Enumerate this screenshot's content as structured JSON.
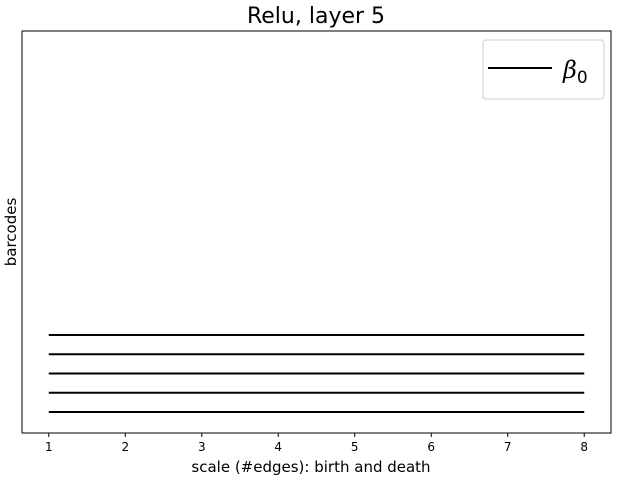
{
  "chart_data": {
    "type": "barcode",
    "title": "Relu, layer 5",
    "xlabel": "scale (#edges): birth and death",
    "ylabel": "barcodes",
    "xlim": [
      0.65,
      8.35
    ],
    "xticks": [
      1,
      2,
      3,
      4,
      5,
      6,
      7,
      8
    ],
    "legend": {
      "position": "top-right",
      "entries": [
        {
          "symbol": "β",
          "subscript": "0"
        }
      ]
    },
    "series": [
      {
        "name": "β0",
        "color": "#000000",
        "bars": [
          {
            "birth": 1,
            "death": 8
          },
          {
            "birth": 1,
            "death": 8
          },
          {
            "birth": 1,
            "death": 8
          },
          {
            "birth": 1,
            "death": 8
          },
          {
            "birth": 1,
            "death": 8
          }
        ]
      }
    ],
    "grid": false
  }
}
